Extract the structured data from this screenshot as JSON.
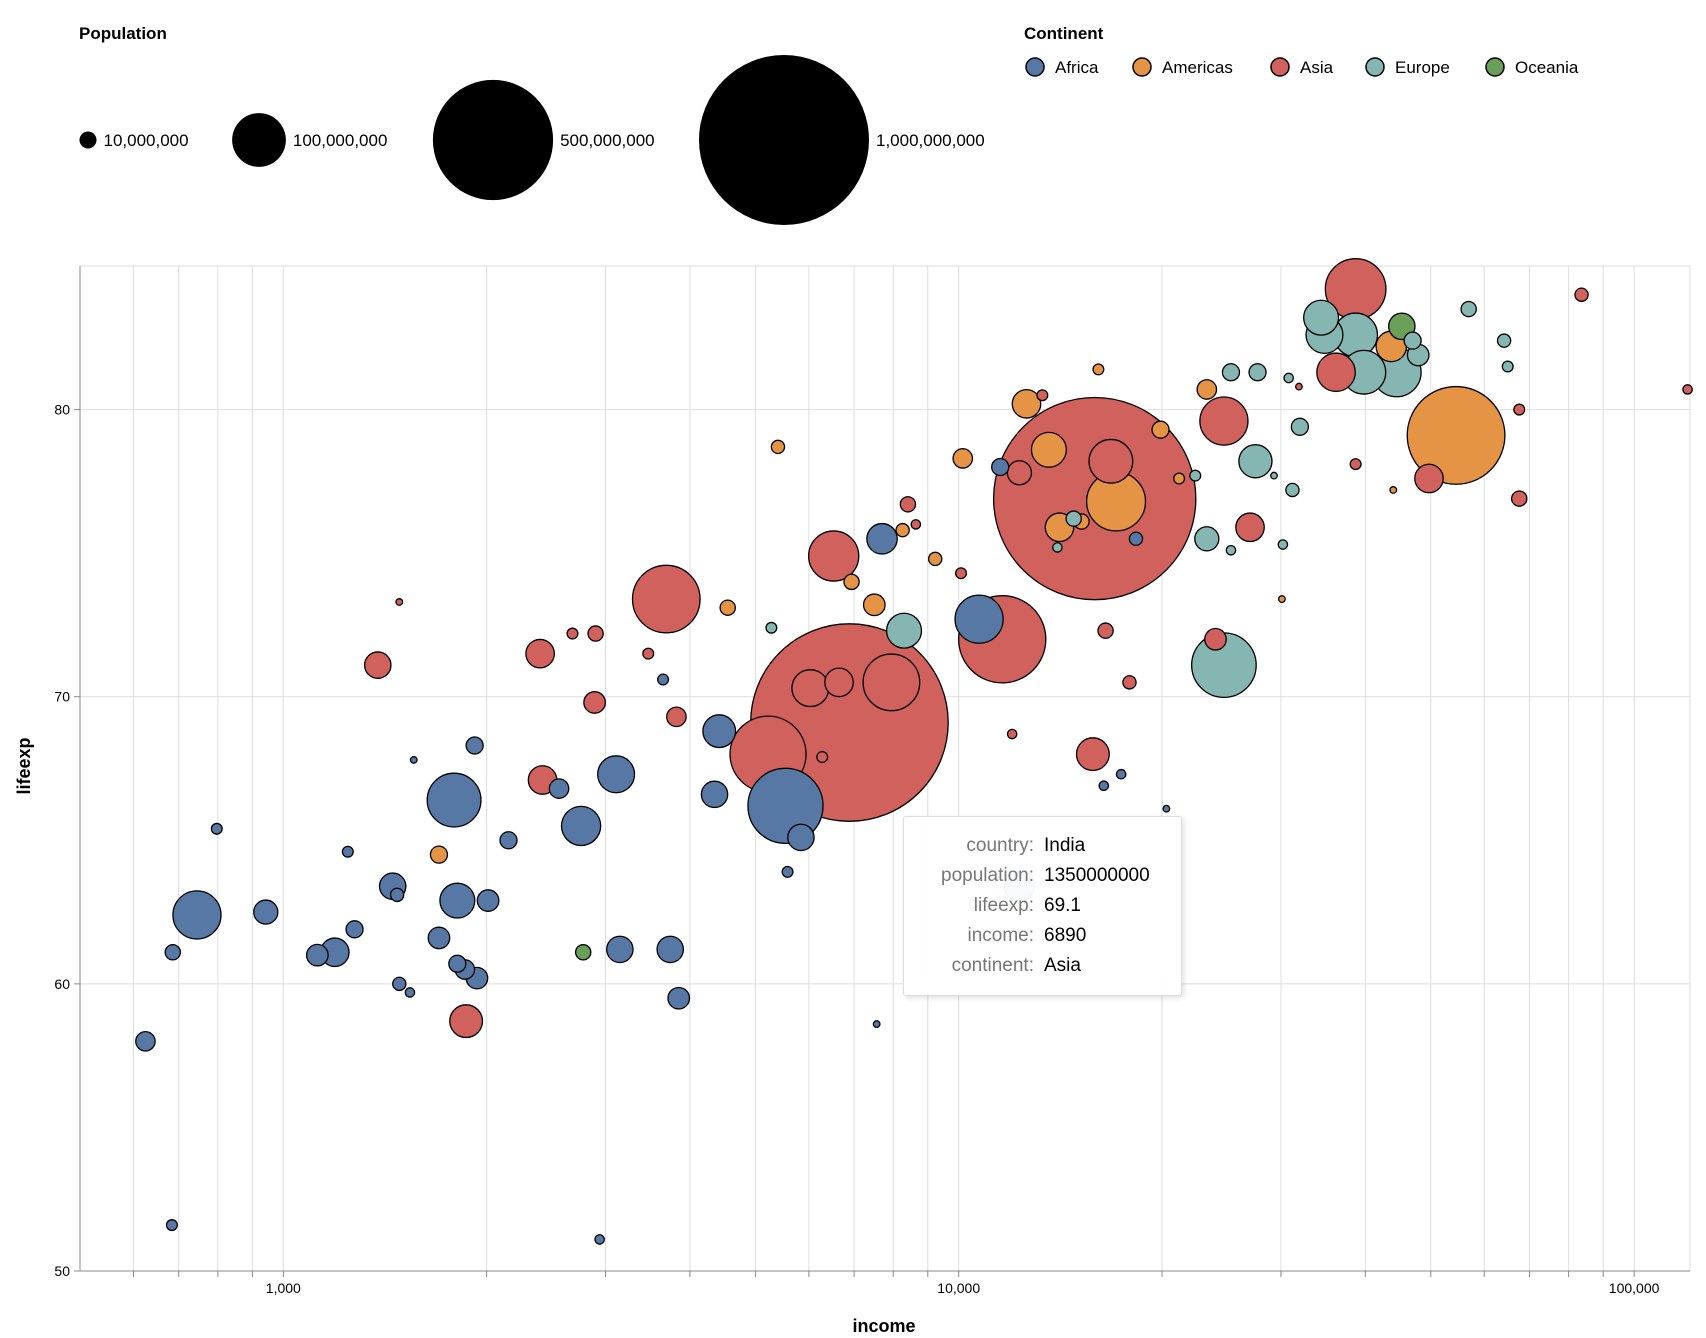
{
  "chart_data": {
    "type": "scatter",
    "xlabel": "income",
    "ylabel": "lifeexp",
    "log_x": true,
    "grid": true,
    "xlim": [
      500,
      121000
    ],
    "ylim": [
      50,
      85
    ],
    "xticks": [
      {
        "value": 1000,
        "label": "1,000"
      },
      {
        "value": 10000,
        "label": "10,000"
      },
      {
        "value": 100000,
        "label": "100,000"
      }
    ],
    "xminor": [
      600,
      700,
      800,
      900,
      2000,
      3000,
      4000,
      5000,
      6000,
      7000,
      8000,
      9000,
      20000,
      30000,
      40000,
      50000,
      60000,
      70000,
      80000,
      90000
    ],
    "yticks": [
      50,
      60,
      70,
      80
    ],
    "size_legend": {
      "title": "Population",
      "values": [
        {
          "value": 10000000,
          "label": "10,000,000"
        },
        {
          "value": 100000000,
          "label": "100,000,000"
        },
        {
          "value": 500000000,
          "label": "500,000,000"
        },
        {
          "value": 1000000000,
          "label": "1,000,000,000"
        }
      ]
    },
    "legend": {
      "title": "Continent"
    },
    "series": [
      {
        "name": "Africa",
        "color": "#5778a4",
        "x": [
          625,
          684,
          686,
          745,
          797,
          942,
          1123,
          1192,
          1246,
          1275,
          1452,
          1474,
          1485,
          1540,
          1560,
          1790,
          1700,
          1810,
          1810,
          1857,
          1920,
          1935,
          2010,
          2155,
          2560,
          2760,
          2940,
          3110,
          3150,
          3650,
          3740,
          3850,
          4350,
          4420,
          5540,
          5840,
          5580,
          7700,
          7560,
          10720,
          11520,
          12300,
          16400,
          17400,
          18300,
          20300
        ],
        "values": [
          58.0,
          51.6,
          61.1,
          62.4,
          65.4,
          62.5,
          61.0,
          61.1,
          64.6,
          61.9,
          63.4,
          63.1,
          60.0,
          59.7,
          67.8,
          66.4,
          61.6,
          62.9,
          60.7,
          60.5,
          68.3,
          60.2,
          62.9,
          65.0,
          66.8,
          65.5,
          51.1,
          67.3,
          61.2,
          70.6,
          61.2,
          59.5,
          66.6,
          68.8,
          66.2,
          65.1,
          63.9,
          75.5,
          58.6,
          72.7,
          78.0,
          63.4,
          66.9,
          67.3,
          75.5,
          66.1
        ],
        "size": [
          13000000,
          4000000,
          8000000,
          80000000,
          4000000,
          20000000,
          16000000,
          28000000,
          4000000,
          10000000,
          24000000,
          6000000,
          6000000,
          3000000,
          1500000,
          100000000,
          16000000,
          42000000,
          10000000,
          13000000,
          10000000,
          16000000,
          16000000,
          10000000,
          13000000,
          53000000,
          3000000,
          47000000,
          24000000,
          4000000,
          24000000,
          16000000,
          24000000,
          37000000,
          195000000,
          24000000,
          4000000,
          32000000,
          1500000,
          80000000,
          10000000,
          32000000,
          3000000,
          3000000,
          6000000,
          1500000
        ]
      },
      {
        "name": "Americas",
        "color": "#e49444",
        "x": [
          1700,
          4550,
          5400,
          6940,
          7500,
          8260,
          9230,
          10140,
          12600,
          13600,
          14100,
          15200,
          16100,
          17100,
          19900,
          21200,
          23300,
          30100,
          43700,
          44000,
          54500
        ],
        "values": [
          64.5,
          73.1,
          78.7,
          74.0,
          73.2,
          75.8,
          74.8,
          78.3,
          80.2,
          78.6,
          75.9,
          76.1,
          81.4,
          76.8,
          79.3,
          77.6,
          80.7,
          73.4,
          82.2,
          77.2,
          79.1
        ],
        "size": [
          10000000,
          8000000,
          6000000,
          8000000,
          16000000,
          6000000,
          6000000,
          13000000,
          28000000,
          42000000,
          28000000,
          8000000,
          4000000,
          120000000,
          10000000,
          4000000,
          13000000,
          1500000,
          32000000,
          1500000,
          330000000
        ]
      },
      {
        "name": "Asia",
        "color": "#d1615d",
        "x": [
          1380,
          1485,
          1865,
          2400,
          2420,
          2680,
          2900,
          2890,
          3470,
          3690,
          3820,
          6280,
          6530,
          6890,
          5220,
          6030,
          6650,
          7950,
          8410,
          8640,
          10080,
          11600,
          12300,
          13300,
          15900,
          16800,
          15800,
          16500,
          17900,
          24000,
          24700,
          27000,
          31900,
          36200,
          38700,
          38700,
          49700,
          67600,
          67600,
          83600,
          120000,
          12000
        ],
        "values": [
          71.1,
          73.3,
          58.7,
          71.5,
          67.1,
          72.2,
          72.2,
          69.8,
          71.5,
          73.4,
          69.3,
          67.9,
          74.9,
          69.1,
          68.0,
          70.3,
          70.5,
          70.5,
          76.7,
          76.0,
          74.3,
          72.0,
          77.8,
          80.5,
          76.9,
          78.2,
          68.0,
          72.3,
          70.5,
          72.0,
          79.6,
          75.9,
          80.8,
          81.3,
          84.2,
          78.1,
          77.6,
          80.0,
          76.9,
          84.0,
          80.7,
          68.7
        ],
        "size": [
          24000000,
          1500000,
          37000000,
          28000000,
          28000000,
          4000000,
          8000000,
          16000000,
          4000000,
          158000000,
          13000000,
          4000000,
          87000000,
          1350000000,
          200000000,
          47000000,
          28000000,
          111000000,
          8000000,
          3000000,
          4000000,
          263000000,
          20000000,
          4000000,
          1415000000,
          66000000,
          37000000,
          8000000,
          6000000,
          16000000,
          80000000,
          28000000,
          1500000,
          51000000,
          127000000,
          4000000,
          28000000,
          4000000,
          8000000,
          6000000,
          3000000,
          3000000
        ]
      },
      {
        "name": "Europe",
        "color": "#85b6b2",
        "x": [
          5280,
          8300,
          14000,
          14800,
          22400,
          23300,
          24700,
          25300,
          27500,
          27700,
          29300,
          30200,
          30800,
          31200,
          32000,
          34400,
          34800,
          38700,
          39800,
          44500,
          47000,
          47900,
          56900,
          64200,
          65000,
          25300
        ],
        "values": [
          72.4,
          72.3,
          75.2,
          76.2,
          77.7,
          75.5,
          71.1,
          81.3,
          78.2,
          81.3,
          77.7,
          75.3,
          81.1,
          77.2,
          79.4,
          83.2,
          82.6,
          82.6,
          81.3,
          81.3,
          82.4,
          81.9,
          83.5,
          82.4,
          81.5,
          75.1
        ],
        "size": [
          4000000,
          42000000,
          3000000,
          8000000,
          4000000,
          20000000,
          144000000,
          10000000,
          38000000,
          10000000,
          1500000,
          3000000,
          3000000,
          6000000,
          10000000,
          42000000,
          47000000,
          66000000,
          66000000,
          83000000,
          10000000,
          16000000,
          8000000,
          6000000,
          4000000,
          3000000
        ]
      },
      {
        "name": "Oceania",
        "color": "#6a9f58",
        "x": [
          2780,
          45300
        ],
        "values": [
          61.1,
          82.9
        ],
        "size": [
          8000000,
          24000000
        ]
      }
    ],
    "tooltip": {
      "rows": [
        {
          "label": "country:",
          "value": "India"
        },
        {
          "label": "population:",
          "value": 1350000000
        },
        {
          "label": "lifeexp:",
          "value": 69.1
        },
        {
          "label": "income:",
          "value": 6890
        },
        {
          "label": "continent:",
          "value": "Asia"
        }
      ]
    }
  }
}
